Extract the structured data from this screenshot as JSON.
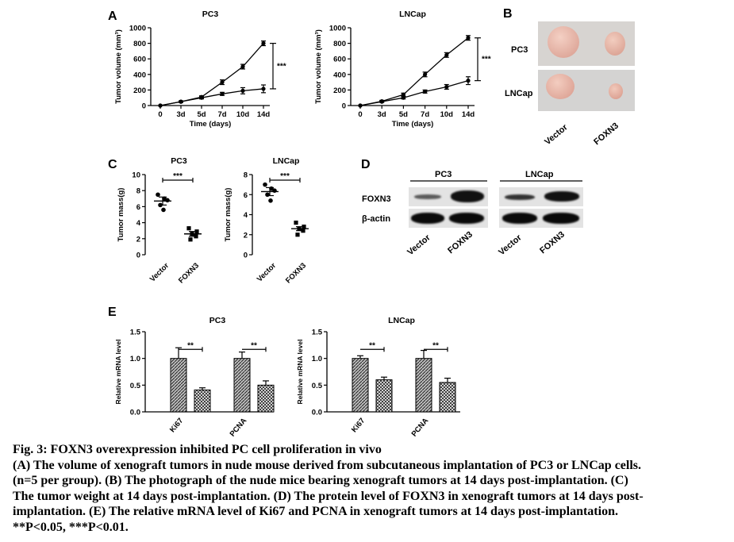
{
  "panel_labels": {
    "a": "A",
    "b": "B",
    "c": "C",
    "d": "D",
    "e": "E"
  },
  "colors": {
    "bar_fill": "#8a8a8a",
    "tumor": "#e8b4a8",
    "photo_bg": "#d8d6d4",
    "blot_bg": "#e6e6e6",
    "band": "#111111"
  },
  "chart_data": [
    {
      "id": "A1",
      "type": "line",
      "title": "PC3",
      "xlabel": "Time (days)",
      "ylabel": "Tumor volume (mm³)",
      "categories": [
        "0",
        "3d",
        "5d",
        "7d",
        "10d",
        "14d"
      ],
      "ylim": [
        0,
        1000
      ],
      "yticks": [
        0,
        200,
        400,
        600,
        800,
        1000
      ],
      "series": [
        {
          "values": [
            0,
            50,
            110,
            300,
            500,
            800
          ],
          "err": [
            0,
            10,
            15,
            30,
            30,
            30
          ]
        },
        {
          "values": [
            0,
            50,
            100,
            150,
            190,
            215
          ],
          "err": [
            0,
            10,
            15,
            20,
            40,
            50
          ]
        }
      ],
      "significance": "***"
    },
    {
      "id": "A2",
      "type": "line",
      "title": "LNCap",
      "xlabel": "Time (days)",
      "ylabel": "Tumor volume (mm³)",
      "categories": [
        "0",
        "3d",
        "5d",
        "7d",
        "10d",
        "14d"
      ],
      "ylim": [
        0,
        1000
      ],
      "yticks": [
        0,
        200,
        400,
        600,
        800,
        1000
      ],
      "series": [
        {
          "values": [
            0,
            55,
            140,
            400,
            650,
            870
          ],
          "err": [
            0,
            12,
            20,
            30,
            30,
            30
          ]
        },
        {
          "values": [
            0,
            50,
            100,
            180,
            240,
            320
          ],
          "err": [
            0,
            10,
            15,
            20,
            30,
            50
          ]
        }
      ],
      "significance": "***"
    },
    {
      "id": "C1",
      "type": "scatter",
      "title": "PC3",
      "ylabel": "Tumor mass(g)",
      "categories": [
        "Vector",
        "FOXN3"
      ],
      "ylim": [
        0,
        10
      ],
      "yticks": [
        0,
        2,
        4,
        6,
        8,
        10
      ],
      "groups": [
        {
          "points": [
            7.5,
            7.0,
            6.8,
            6.2,
            5.6
          ],
          "mean": 6.7,
          "sem": 0.5
        },
        {
          "points": [
            3.3,
            2.9,
            2.6,
            2.3,
            1.9
          ],
          "mean": 2.6,
          "sem": 0.3
        }
      ],
      "significance": "***"
    },
    {
      "id": "C2",
      "type": "scatter",
      "title": "LNCap",
      "ylabel": "Tumor mass(g)",
      "categories": [
        "Vector",
        "FOXN3"
      ],
      "ylim": [
        0,
        8
      ],
      "yticks": [
        0,
        2,
        4,
        6,
        8
      ],
      "groups": [
        {
          "points": [
            7.0,
            6.6,
            6.4,
            6.0,
            5.4
          ],
          "mean": 6.3,
          "sem": 0.4
        },
        {
          "points": [
            3.2,
            2.8,
            2.6,
            2.4,
            2.0
          ],
          "mean": 2.6,
          "sem": 0.2
        }
      ],
      "significance": "***"
    },
    {
      "id": "E1",
      "type": "bar",
      "title": "PC3",
      "ylabel": "Relative mRNA level",
      "categories": [
        "Ki67",
        "PCNA"
      ],
      "ylim": [
        0,
        1.5
      ],
      "yticks": [
        "0.0",
        "0.5",
        "1.0",
        "1.5"
      ],
      "series": [
        {
          "values": [
            1.0,
            1.0
          ],
          "err": [
            0.2,
            0.12
          ]
        },
        {
          "values": [
            0.41,
            0.5
          ],
          "err": [
            0.04,
            0.08
          ]
        }
      ],
      "significance": [
        "**",
        "**"
      ]
    },
    {
      "id": "E2",
      "type": "bar",
      "title": "LNCap",
      "ylabel": "Relative mRNA level",
      "categories": [
        "Ki67",
        "PCNA"
      ],
      "ylim": [
        0,
        1.5
      ],
      "yticks": [
        "0.0",
        "0.5",
        "1.0",
        "1.5"
      ],
      "series": [
        {
          "values": [
            1.0,
            1.0
          ],
          "err": [
            0.05,
            0.15
          ]
        },
        {
          "values": [
            0.6,
            0.55
          ],
          "err": [
            0.05,
            0.08
          ]
        }
      ],
      "significance": [
        "**",
        "**"
      ]
    }
  ],
  "photo": {
    "rows": [
      "PC3",
      "LNCap"
    ],
    "columns": [
      "Vector",
      "FOXN3"
    ]
  },
  "blot": {
    "cell_lines": [
      "PC3",
      "LNCap"
    ],
    "rows": [
      "FOXN3",
      "β-actin"
    ],
    "lanes": [
      "Vector",
      "FOXN3",
      "Vector",
      "FOXN3"
    ]
  },
  "caption": {
    "title": "Fig. 3: FOXN3 overexpression inhibited PC cell proliferation in vivo",
    "lines": [
      "(A) The volume of xenograft tumors in nude mouse derived from subcutaneous implantation of PC3 or LNCap cells.",
      "(n=5 per group). (B) The photograph of the nude mice bearing xenograft tumors at 14 days post-implantation. (C)",
      "The tumor weight at 14 days post-implantation. (D) The protein level of FOXN3 in xenograft tumors at 14 days post-",
      "implantation. (E) The relative mRNA level of Ki67 and PCNA in xenograft tumors at 14 days post-implantation."
    ],
    "pvalues": "**P<0.05, ***P<0.01."
  }
}
